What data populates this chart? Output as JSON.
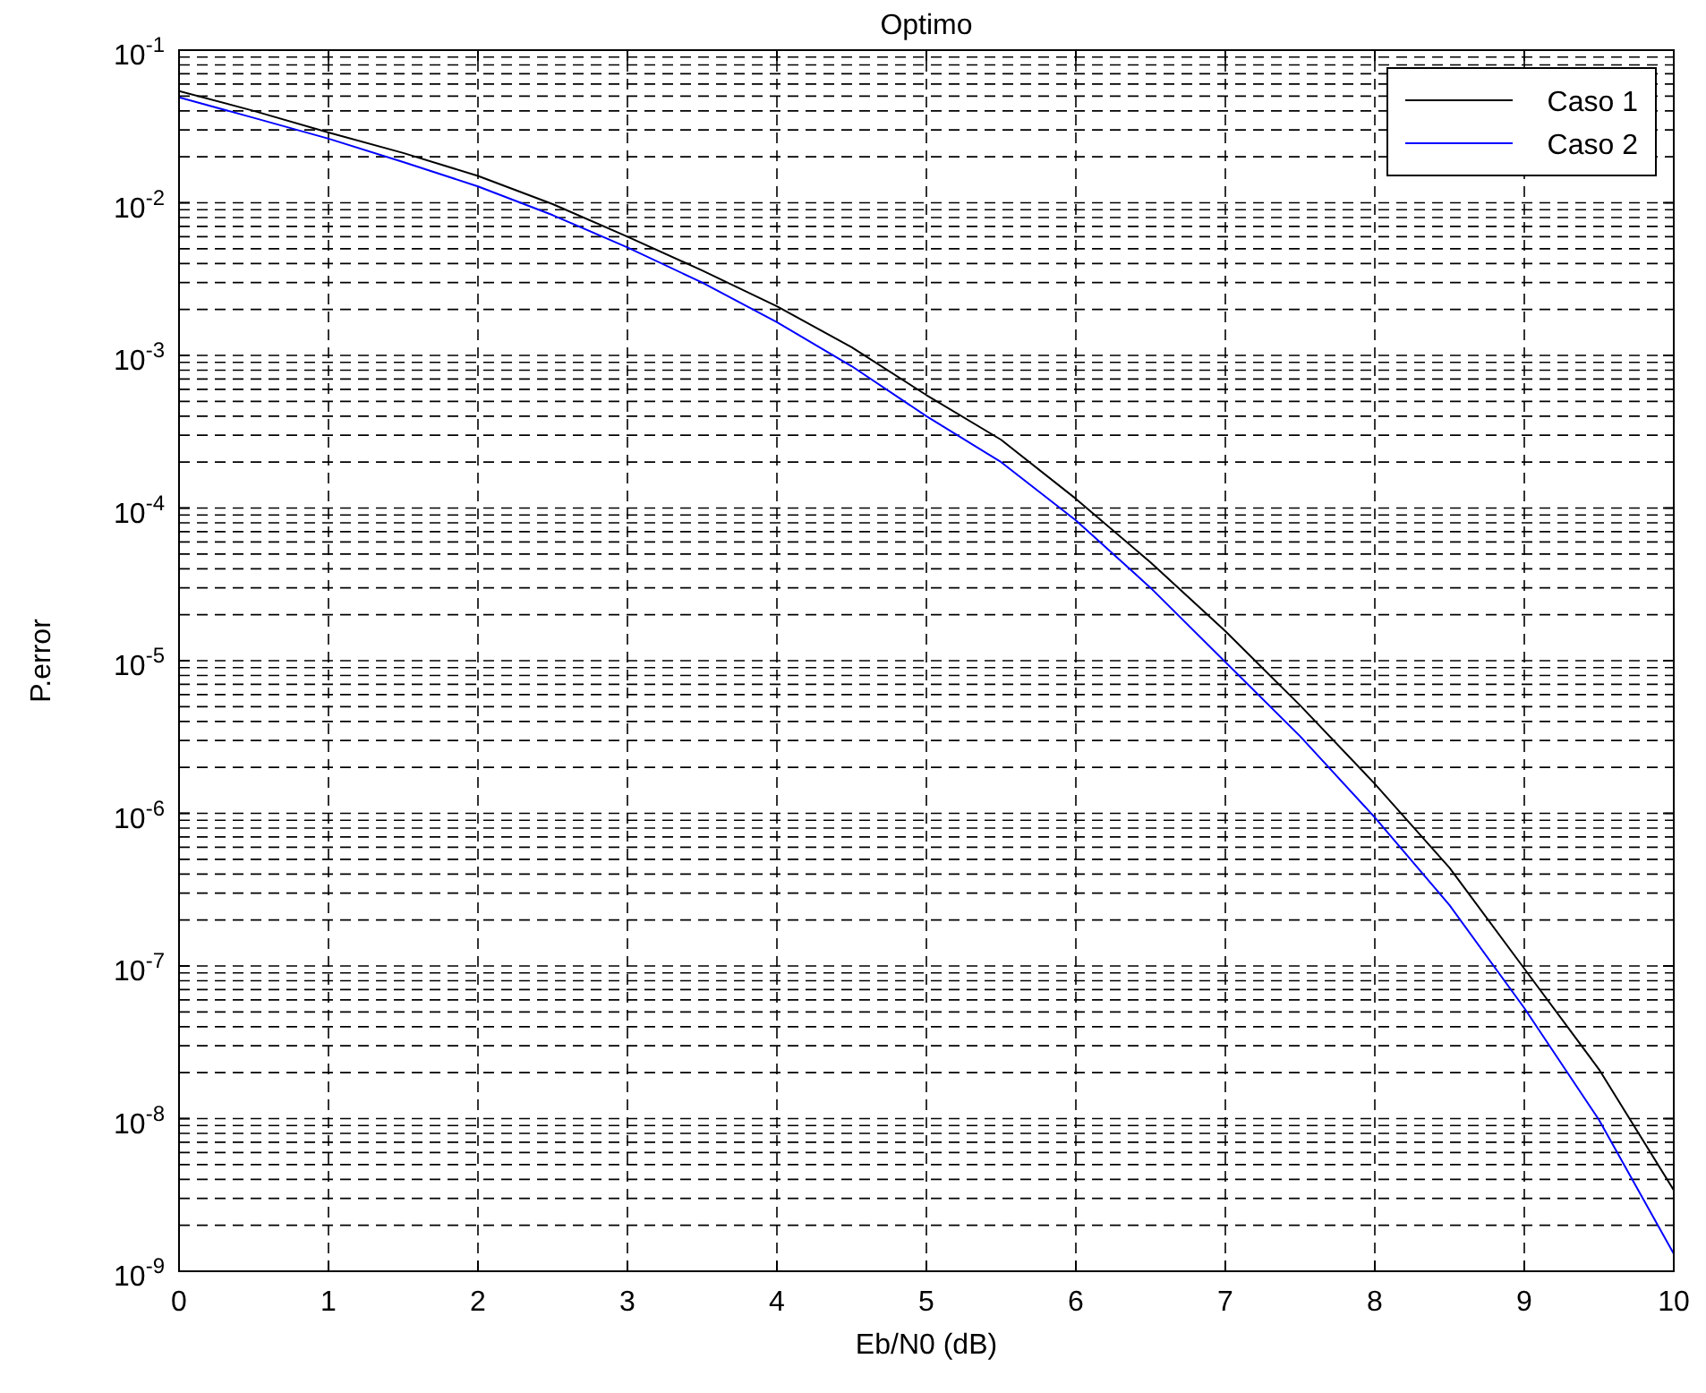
{
  "chart_data": {
    "type": "line",
    "title": "Optimo",
    "xlabel": "Eb/N0 (dB)",
    "ylabel": "P.error",
    "x": [
      0,
      0.5,
      1,
      1.5,
      2,
      2.5,
      3,
      3.5,
      4,
      4.5,
      5,
      5.5,
      6,
      6.5,
      7,
      7.5,
      8,
      8.5,
      9,
      9.5,
      10
    ],
    "series": [
      {
        "name": "Caso 1",
        "color": "#000000",
        "values": [
          0.054,
          0.04,
          0.0289,
          0.0212,
          0.015,
          0.0098,
          0.006,
          0.0036,
          0.0021,
          0.00113,
          0.00055,
          0.00028,
          0.000115,
          4.4e-05,
          1.56e-05,
          5.1e-06,
          1.56e-06,
          4.4e-07,
          9.6e-08,
          2.1e-08,
          3.4e-09
        ]
      },
      {
        "name": "Caso 2",
        "color": "#0000ff",
        "values": [
          0.049,
          0.036,
          0.0263,
          0.0185,
          0.0128,
          0.0083,
          0.0051,
          0.003,
          0.00165,
          0.00085,
          0.0004,
          0.0002,
          8.3e-05,
          3e-05,
          9.8e-06,
          3.2e-06,
          9.4e-07,
          2.5e-07,
          5.3e-08,
          9.8e-09,
          1.3e-09
        ]
      }
    ],
    "xlim": [
      0,
      10
    ],
    "xticks": [
      0,
      1,
      2,
      3,
      4,
      5,
      6,
      7,
      8,
      9,
      10
    ],
    "ylim": [
      1e-09,
      0.1
    ],
    "log": "y",
    "yticks": [
      {
        "value": 1e-09,
        "label": "10$^{-9}$"
      },
      {
        "value": 1e-08,
        "label": "10$^{-8}$"
      },
      {
        "value": 1e-07,
        "label": "10$^{-7}$"
      },
      {
        "value": 1e-06,
        "label": "10$^{-6}$"
      },
      {
        "value": 1e-05,
        "label": "10$^{-5}$"
      },
      {
        "value": 0.0001,
        "label": "10$^{-4}$"
      },
      {
        "value": 0.001,
        "label": "10$^{-3}$"
      },
      {
        "value": 0.01,
        "label": "10$^{-2}$"
      },
      {
        "value": 0.1,
        "label": "10$^{-1}$"
      }
    ],
    "grid": true,
    "legend": "top right",
    "marker": "none",
    "line_style": "solid"
  }
}
